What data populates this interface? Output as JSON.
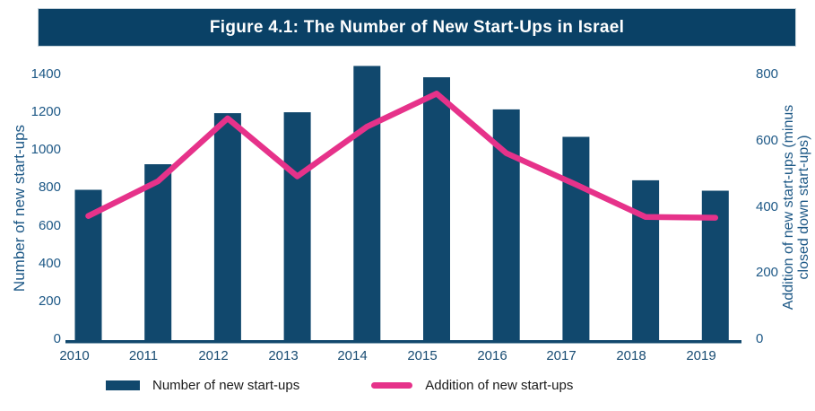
{
  "title_bar": {
    "text": "Figure 4.1: The Number of New Start-Ups in Israel"
  },
  "axes": {
    "left_title": "Number of new start-ups",
    "right_title_line1": "Addition of new start-ups (minus",
    "right_title_line2": "closed down start-ups)",
    "left_ticks": [
      0,
      200,
      400,
      600,
      800,
      1000,
      1200,
      1400
    ],
    "right_ticks": [
      0,
      200,
      400,
      600,
      800
    ]
  },
  "legend": {
    "items": [
      {
        "label": "Number of new start-ups",
        "swatch": "bar-swatch"
      },
      {
        "label": "Addition of new start-ups",
        "swatch": "line-swatch"
      }
    ]
  },
  "colors": {
    "title_bg": "#0a4166",
    "bar": "#11486d",
    "line": "#e6328a",
    "axis_text": "#1d5886",
    "baseline": "#11486d"
  },
  "chart_data": {
    "type": "bar",
    "title": "Figure 4.1: The Number of New Start-Ups in Israel",
    "categories": [
      "2010",
      "2011",
      "2012",
      "2013",
      "2014",
      "2015",
      "2016",
      "2017",
      "2018",
      "2019"
    ],
    "series": [
      {
        "name": "Number of new start-ups",
        "type": "bar",
        "axis": "left",
        "values": [
          795,
          930,
          1200,
          1205,
          1450,
          1390,
          1220,
          1075,
          845,
          790
        ]
      },
      {
        "name": "Addition of new start-ups",
        "type": "line",
        "axis": "right",
        "values": [
          375,
          480,
          670,
          495,
          645,
          745,
          565,
          470,
          372,
          370
        ]
      }
    ],
    "xlabel": "",
    "ylabel_left": "Number of new start-ups",
    "ylabel_right": "Addition of new start-ups (minus closed down start-ups)",
    "ylim_left": [
      0,
      1400
    ],
    "ylim_right": [
      0,
      800
    ],
    "grid": false,
    "legend_position": "bottom"
  }
}
